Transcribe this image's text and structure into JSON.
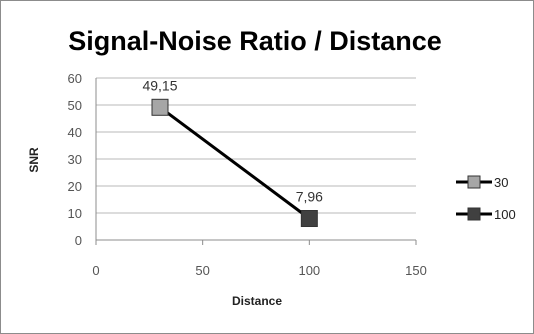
{
  "chart_data": {
    "type": "scatter",
    "title": "Signal-Noise Ratio / Distance",
    "xlabel": "Distance",
    "ylabel": "SNR",
    "xlim": [
      0,
      150
    ],
    "ylim": [
      0,
      60
    ],
    "xticks": [
      0,
      50,
      100,
      150
    ],
    "yticks": [
      0,
      10,
      20,
      30,
      40,
      50,
      60
    ],
    "grid": "horizontal",
    "legend": "right",
    "series": [
      {
        "name": "30",
        "x": 30,
        "y": 49.15,
        "label": "49,15",
        "color": "#a6a6a6"
      },
      {
        "name": "100",
        "x": 100,
        "y": 7.96,
        "label": "7,96",
        "color": "#404040"
      }
    ],
    "line_color": "#000000"
  }
}
